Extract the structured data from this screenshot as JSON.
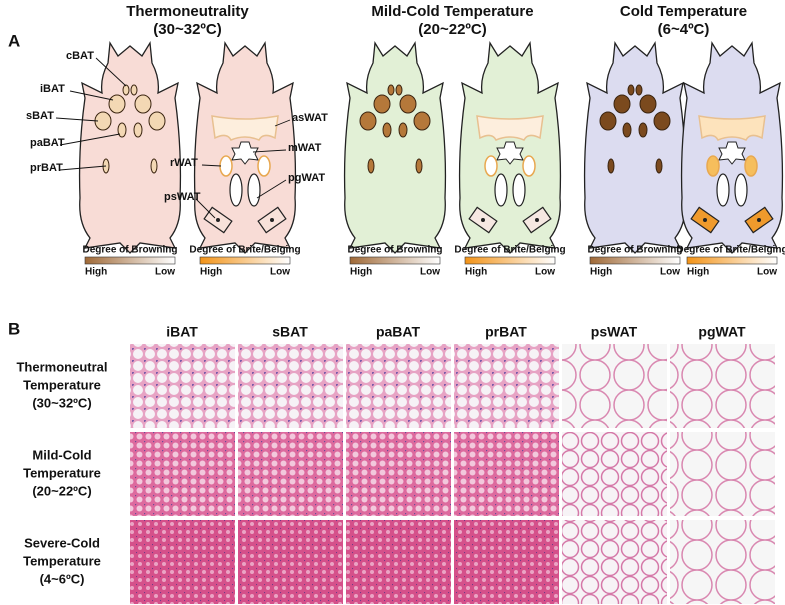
{
  "panel_a": {
    "label": "A",
    "conditions": [
      {
        "title": "Thermoneutrality",
        "subtitle": "(30~32ºC)",
        "browning_legend": {
          "title": "Degree of Browning",
          "high": "High",
          "low": "Low"
        },
        "beiging_legend": {
          "title": "Degree of Brite/Beiging",
          "high": "High",
          "low": "Low"
        }
      },
      {
        "title": "Mild-Cold Temperature",
        "subtitle": "(20~22ºC)",
        "browning_legend": {
          "title": "Degree of Browning",
          "high": "High",
          "low": "Low"
        },
        "beiging_legend": {
          "title": "Degree of Brite/Beiging",
          "high": "High",
          "low": "Low"
        }
      },
      {
        "title": "Cold Temperature",
        "subtitle": "(6~4ºC)",
        "browning_legend": {
          "title": "Degree of Browning",
          "high": "High",
          "low": "Low"
        },
        "beiging_legend": {
          "title": "Degree of Brite/Beiging",
          "high": "High",
          "low": "Low"
        }
      }
    ],
    "bat_labels": [
      "cBAT",
      "iBAT",
      "sBAT",
      "paBAT",
      "prBAT"
    ],
    "wat_labels": [
      "asWAT",
      "mWAT",
      "rWAT",
      "pgWAT",
      "psWAT"
    ]
  },
  "panel_b": {
    "label": "B",
    "columns": [
      "iBAT",
      "sBAT",
      "paBAT",
      "prBAT",
      "psWAT",
      "pgWAT"
    ],
    "rows": [
      {
        "lines": [
          "Thermoneutral",
          "Temperature",
          "(30~32ºC)"
        ]
      },
      {
        "lines": [
          "Mild-Cold",
          "Temperature",
          "(20~22ºC)"
        ]
      },
      {
        "lines": [
          "Severe-Cold",
          "Temperature",
          "(4~6ºC)"
        ]
      }
    ]
  }
}
